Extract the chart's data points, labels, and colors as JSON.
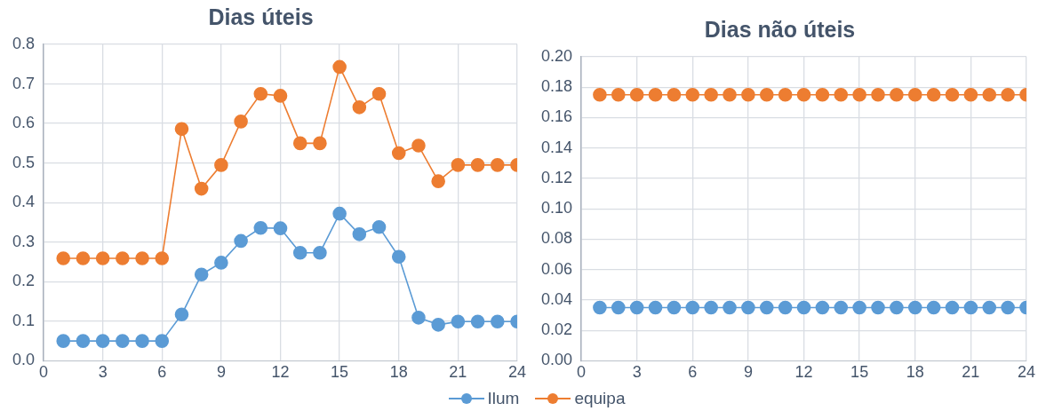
{
  "chart_data": [
    {
      "type": "line",
      "title": "Dias úteis",
      "x": [
        1,
        2,
        3,
        4,
        5,
        6,
        7,
        8,
        9,
        10,
        11,
        12,
        13,
        14,
        15,
        16,
        17,
        18,
        19,
        20,
        21,
        22,
        23,
        24
      ],
      "xlim": [
        0,
        24
      ],
      "xticks": [
        0,
        3,
        6,
        9,
        12,
        15,
        18,
        21,
        24
      ],
      "ylim": [
        0,
        0.8
      ],
      "yticks": [
        {
          "value": 0,
          "label": "0.0"
        },
        {
          "value": 0.1,
          "label": "0.1"
        },
        {
          "value": 0.2,
          "label": "0.2"
        },
        {
          "value": 0.3,
          "label": "0.3"
        },
        {
          "value": 0.4,
          "label": "0.4"
        },
        {
          "value": 0.5,
          "label": "0.5"
        },
        {
          "value": 0.6,
          "label": "0.6"
        },
        {
          "value": 0.7,
          "label": "0.7"
        },
        {
          "value": 0.8,
          "label": "0.8"
        }
      ],
      "grid": true,
      "marker": "circle",
      "legend": "bottom",
      "series": [
        {
          "name": "Ilum",
          "color": "#5b9bd5",
          "values": [
            0.05,
            0.05,
            0.05,
            0.05,
            0.05,
            0.05,
            0.117,
            0.218,
            0.248,
            0.303,
            0.336,
            0.335,
            0.273,
            0.273,
            0.372,
            0.32,
            0.338,
            0.263,
            0.109,
            0.091,
            0.099,
            0.099,
            0.099,
            0.099
          ]
        },
        {
          "name": "equipa",
          "color": "#ed7d31",
          "values": [
            0.259,
            0.259,
            0.259,
            0.259,
            0.259,
            0.259,
            0.586,
            0.435,
            0.495,
            0.605,
            0.675,
            0.67,
            0.55,
            0.55,
            0.743,
            0.641,
            0.675,
            0.525,
            0.544,
            0.454,
            0.495,
            0.495,
            0.495,
            0.495
          ]
        }
      ]
    },
    {
      "type": "line",
      "title": "Dias não úteis",
      "x": [
        1,
        2,
        3,
        4,
        5,
        6,
        7,
        8,
        9,
        10,
        11,
        12,
        13,
        14,
        15,
        16,
        17,
        18,
        19,
        20,
        21,
        22,
        23,
        24
      ],
      "xlim": [
        0,
        24
      ],
      "xticks": [
        0,
        3,
        6,
        9,
        12,
        15,
        18,
        21,
        24
      ],
      "ylim": [
        0,
        0.2
      ],
      "yticks": [
        {
          "value": 0,
          "label": "0.00"
        },
        {
          "value": 0.02,
          "label": "0.02"
        },
        {
          "value": 0.04,
          "label": "0.04"
        },
        {
          "value": 0.06,
          "label": "0.06"
        },
        {
          "value": 0.08,
          "label": "0.08"
        },
        {
          "value": 0.1,
          "label": "0.10"
        },
        {
          "value": 0.12,
          "label": "0.12"
        },
        {
          "value": 0.14,
          "label": "0.14"
        },
        {
          "value": 0.16,
          "label": "0.16"
        },
        {
          "value": 0.18,
          "label": "0.18"
        },
        {
          "value": 0.2,
          "label": "0.20"
        }
      ],
      "grid": true,
      "marker": "circle",
      "series": [
        {
          "color": "#5b9bd5",
          "values": [
            0.035,
            0.035,
            0.035,
            0.035,
            0.035,
            0.035,
            0.035,
            0.035,
            0.035,
            0.035,
            0.035,
            0.035,
            0.035,
            0.035,
            0.035,
            0.035,
            0.035,
            0.035,
            0.035,
            0.035,
            0.035,
            0.035,
            0.035,
            0.035
          ]
        },
        {
          "color": "#ed7d31",
          "values": [
            0.175,
            0.175,
            0.175,
            0.175,
            0.175,
            0.175,
            0.175,
            0.175,
            0.175,
            0.175,
            0.175,
            0.175,
            0.175,
            0.175,
            0.175,
            0.175,
            0.175,
            0.175,
            0.175,
            0.175,
            0.175,
            0.175,
            0.175,
            0.175
          ]
        }
      ]
    }
  ]
}
